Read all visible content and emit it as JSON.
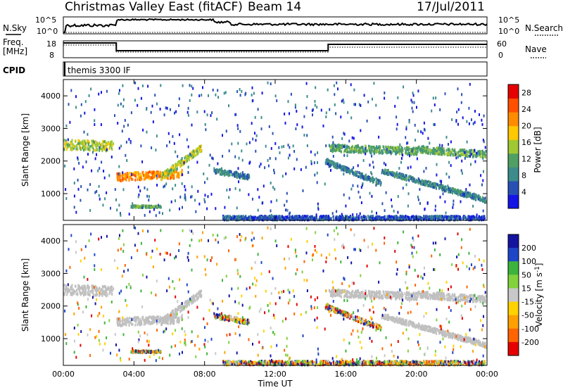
{
  "header": {
    "station": "Christmas Valley East (fitACF)",
    "beam": "Beam 14",
    "date": "17/Jul/2011"
  },
  "summary_panels": {
    "nsky_label": "N.Sky",
    "nsearch_label": "N.Search",
    "freq_label_1": "Freq.",
    "freq_label_2": "[MHz]",
    "nave_label": "Nave",
    "cpid_label": "CPID",
    "cpid_text": "themis 3300 IF",
    "noise_ticks": [
      "10^5",
      "10^0"
    ],
    "freq_ticks": [
      "18",
      "8"
    ],
    "nave_ticks": [
      "60",
      "0"
    ]
  },
  "colors": {
    "power_scale": [
      "#1414e6",
      "#2850b4",
      "#3c8c8c",
      "#50a064",
      "#a0c832",
      "#ffc800",
      "#ff8c00",
      "#ff5000",
      "#e60000"
    ],
    "velocity_scale": [
      "#1414a0",
      "#1e46c8",
      "#3cb43c",
      "#82d23c",
      "#c8c8c8",
      "#ffd200",
      "#ffa000",
      "#ff6400",
      "#e60000"
    ],
    "ground_scatter": "#c0c0c0"
  },
  "chart_data": [
    {
      "type": "heatmap",
      "name": "power",
      "ylabel": "Slant Range [km]",
      "xlabel": "",
      "x_ticks": [
        "00:00",
        "04:00",
        "08:00",
        "12:00",
        "16:00",
        "20:00",
        "00:00"
      ],
      "x_range_hours": [
        0,
        24
      ],
      "y_range_km": [
        180,
        4500
      ],
      "y_ticks": [
        1000,
        2000,
        3000,
        4000
      ],
      "colorbar_label": "Power [dB]",
      "colorbar_ticks": [
        4,
        8,
        12,
        16,
        20,
        24,
        28
      ],
      "colorbar_range": [
        0,
        30
      ]
    },
    {
      "type": "heatmap",
      "name": "velocity",
      "ylabel": "Slant Range [km]",
      "xlabel": "Time UT",
      "x_ticks": [
        "00:00",
        "04:00",
        "08:00",
        "12:00",
        "16:00",
        "20:00",
        "00:00"
      ],
      "x_range_hours": [
        0,
        24
      ],
      "y_range_km": [
        180,
        4500
      ],
      "y_ticks": [
        1000,
        2000,
        3000,
        4000
      ],
      "colorbar_label": "Velocity [m s^-1]",
      "colorbar_ticks": [
        "200",
        "100",
        "50",
        "15",
        "-15",
        "-50",
        "-100",
        "-200"
      ]
    }
  ]
}
